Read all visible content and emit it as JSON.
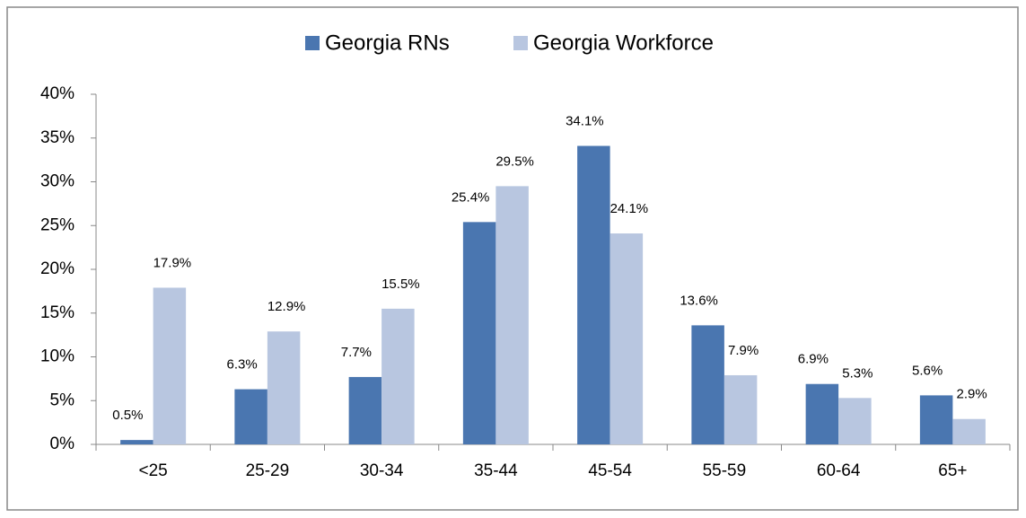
{
  "chart_data": {
    "type": "bar",
    "categories": [
      "<25",
      "25-29",
      "30-34",
      "35-44",
      "45-54",
      "55-59",
      "60-64",
      "65+"
    ],
    "series": [
      {
        "name": "Georgia RNs",
        "color": "#4a76b0",
        "values": [
          0.5,
          6.3,
          7.7,
          25.4,
          34.1,
          13.6,
          6.9,
          5.6
        ],
        "value_labels": [
          "0.5%",
          "6.3%",
          "7.7%",
          "25.4%",
          "34.1%",
          "13.6%",
          "6.9%",
          "5.6%"
        ]
      },
      {
        "name": "Georgia Workforce",
        "color": "#b8c6e0",
        "values": [
          17.9,
          12.9,
          15.5,
          29.5,
          24.1,
          7.9,
          5.3,
          2.9
        ],
        "value_labels": [
          "17.9%",
          "12.9%",
          "15.5%",
          "29.5%",
          "24.1%",
          "7.9%",
          "5.3%",
          "2.9%"
        ]
      }
    ],
    "ylim": [
      0,
      40
    ],
    "yticks": [
      {
        "value": 0,
        "label": "0%"
      },
      {
        "value": 5,
        "label": "5%"
      },
      {
        "value": 10,
        "label": "10%"
      },
      {
        "value": 15,
        "label": "15%"
      },
      {
        "value": 20,
        "label": "20%"
      },
      {
        "value": 25,
        "label": "25%"
      },
      {
        "value": 30,
        "label": "30%"
      },
      {
        "value": 35,
        "label": "35%"
      },
      {
        "value": 40,
        "label": "40%"
      }
    ],
    "grid": false,
    "legend": "top"
  }
}
